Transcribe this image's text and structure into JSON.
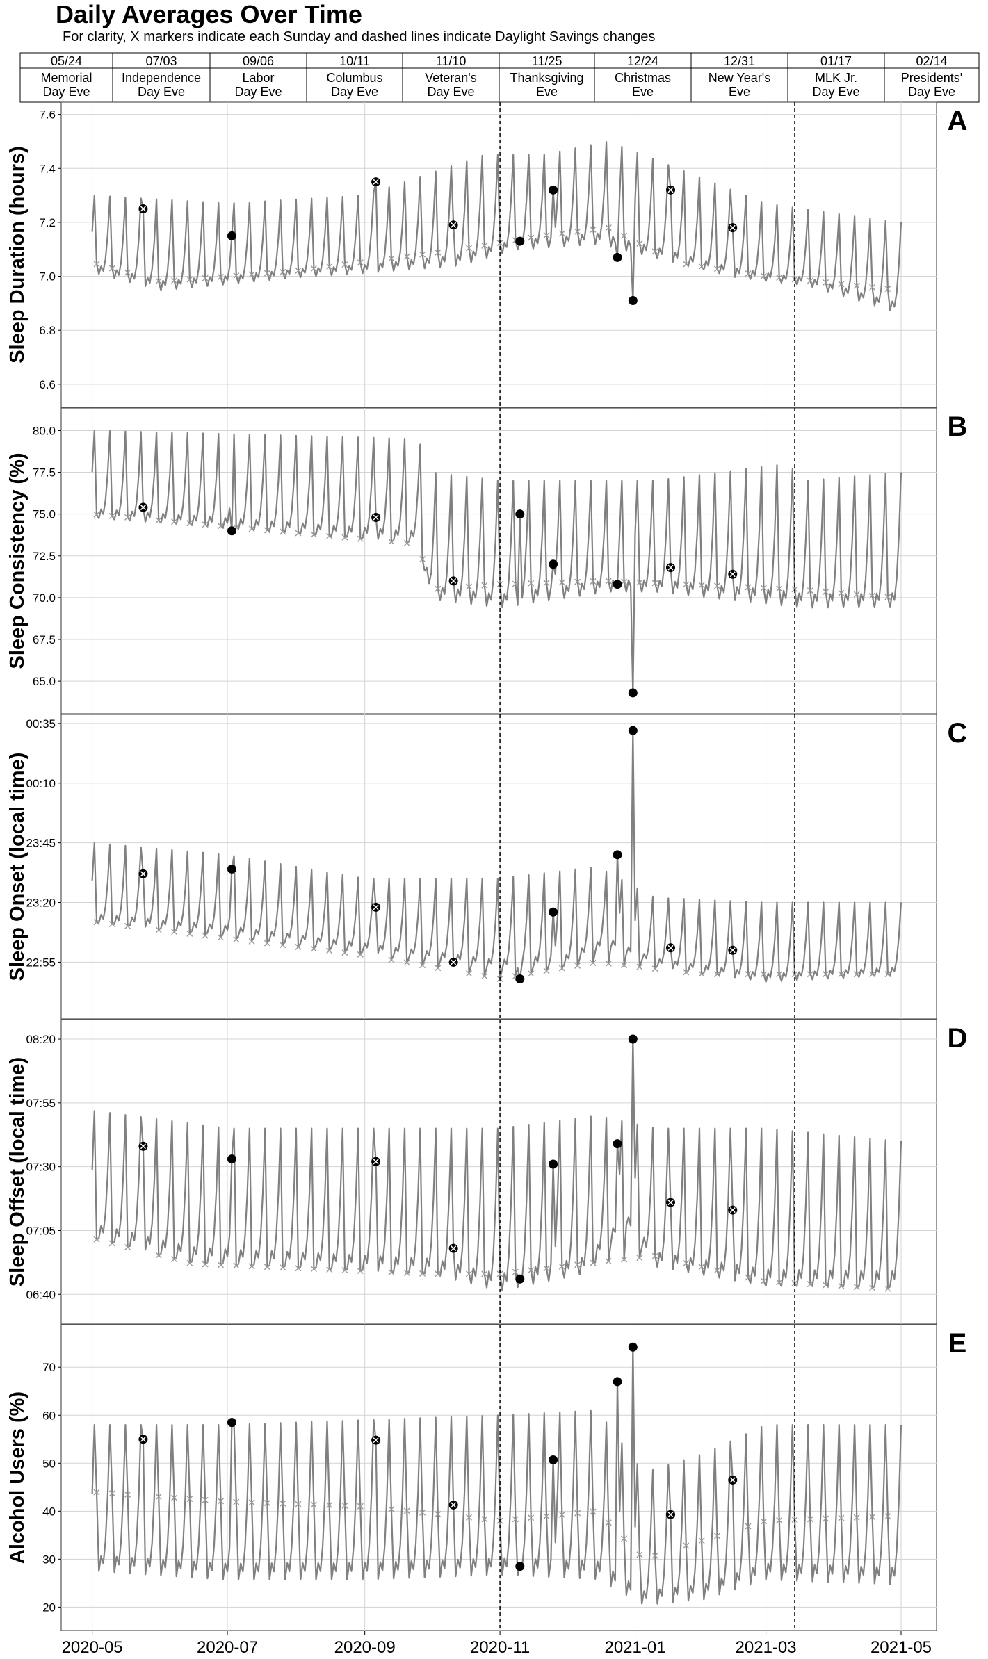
{
  "title": "Daily Averages Over Time",
  "subtitle": "For clarity, X markers indicate each Sunday and dashed lines indicate Daylight Savings changes",
  "holiday_table": [
    {
      "date": "05/24",
      "name_line1": "Memorial",
      "name_line2": "Day Eve"
    },
    {
      "date": "07/03",
      "name_line1": "Independence",
      "name_line2": "Day Eve"
    },
    {
      "date": "09/06",
      "name_line1": "Labor",
      "name_line2": "Day Eve"
    },
    {
      "date": "10/11",
      "name_line1": "Columbus",
      "name_line2": "Day Eve"
    },
    {
      "date": "11/10",
      "name_line1": "Veteran's",
      "name_line2": "Day Eve"
    },
    {
      "date": "11/25",
      "name_line1": "Thanksgiving",
      "name_line2": "Eve"
    },
    {
      "date": "12/24",
      "name_line1": "Christmas",
      "name_line2": "Eve"
    },
    {
      "date": "12/31",
      "name_line1": "New Year's",
      "name_line2": "Eve"
    },
    {
      "date": "01/17",
      "name_line1": "MLK Jr.",
      "name_line2": "Day Eve"
    },
    {
      "date": "02/14",
      "name_line1": "Presidents'",
      "name_line2": "Day Eve"
    }
  ],
  "x_tick_labels": [
    "2020-05",
    "2020-07",
    "2020-09",
    "2020-11",
    "2021-01",
    "2021-03",
    "2021-05"
  ],
  "x_ticks": [
    "2020-05-01",
    "2020-07-01",
    "2020-09-01",
    "2020-11-01",
    "2021-01-01",
    "2021-03-01",
    "2021-05-01"
  ],
  "x_range": [
    "2020-04-17",
    "2021-05-17"
  ],
  "dst_changes": [
    "2020-11-01",
    "2021-03-14"
  ],
  "styles": {
    "line_color": "#808080",
    "marker_color": "#000000",
    "grid_color": "#d3d3d3"
  },
  "chart_data": [
    {
      "type": "line",
      "panel_letter": "A",
      "ylabel": "Sleep Duration (hours)",
      "ylim": [
        6.53,
        7.63
      ],
      "y_ticks": [
        6.6,
        6.8,
        7.0,
        7.2,
        7.4,
        7.6
      ],
      "y_tick_labels": [
        "6.6",
        "6.8",
        "7.0",
        "7.2",
        "7.4",
        "7.6"
      ],
      "weekly_pattern": {
        "first_date": "2020-05-01",
        "last_date": "2021-05-01",
        "baseline_knots": [
          [
            "2020-05-01",
            7.0
          ],
          [
            "2020-06-01",
            6.93
          ],
          [
            "2020-08-01",
            6.98
          ],
          [
            "2020-10-15",
            7.02
          ],
          [
            "2020-11-08",
            7.08
          ],
          [
            "2020-12-15",
            7.1
          ],
          [
            "2021-01-10",
            7.05
          ],
          [
            "2021-02-15",
            6.98
          ],
          [
            "2021-03-20",
            6.95
          ],
          [
            "2021-04-29",
            6.85
          ]
        ],
        "peak_knots": [
          [
            "2020-05-01",
            7.3
          ],
          [
            "2020-07-01",
            7.27
          ],
          [
            "2020-09-01",
            7.3
          ],
          [
            "2020-10-25",
            7.45
          ],
          [
            "2020-11-20",
            7.45
          ],
          [
            "2020-12-20",
            7.5
          ],
          [
            "2021-01-20",
            7.4
          ],
          [
            "2021-03-01",
            7.27
          ],
          [
            "2021-04-29",
            7.2
          ]
        ],
        "sunday_knots": [
          [
            "2020-05-01",
            7.05
          ],
          [
            "2020-06-01",
            6.98
          ],
          [
            "2020-08-01",
            7.02
          ],
          [
            "2020-10-15",
            7.1
          ],
          [
            "2020-11-20",
            7.15
          ],
          [
            "2020-12-20",
            7.18
          ],
          [
            "2021-01-20",
            7.05
          ],
          [
            "2021-03-01",
            7.0
          ],
          [
            "2021-04-29",
            6.95
          ]
        ]
      },
      "holiday_markers": [
        {
          "date": "2020-05-24",
          "value": 7.25,
          "sunday": true
        },
        {
          "date": "2020-07-03",
          "value": 7.15,
          "sunday": false
        },
        {
          "date": "2020-09-06",
          "value": 7.35,
          "sunday": true
        },
        {
          "date": "2020-10-11",
          "value": 7.19,
          "sunday": true
        },
        {
          "date": "2020-11-10",
          "value": 7.13,
          "sunday": false
        },
        {
          "date": "2020-11-25",
          "value": 7.32,
          "sunday": false
        },
        {
          "date": "2020-12-24",
          "value": 7.07,
          "sunday": false
        },
        {
          "date": "2020-12-31",
          "value": 6.91,
          "sunday": false
        },
        {
          "date": "2021-01-17",
          "value": 7.32,
          "sunday": true
        },
        {
          "date": "2021-02-14",
          "value": 7.18,
          "sunday": true
        }
      ]
    },
    {
      "type": "line",
      "panel_letter": "B",
      "ylabel": "Sleep Consistency (%)",
      "ylim": [
        63.3,
        81.1
      ],
      "y_ticks": [
        65.0,
        67.5,
        70.0,
        72.5,
        75.0,
        77.5,
        80.0
      ],
      "y_tick_labels": [
        "65.0",
        "67.5",
        "70.0",
        "72.5",
        "75.0",
        "77.5",
        "80.0"
      ],
      "weekly_pattern": {
        "first_date": "2020-05-01",
        "last_date": "2021-05-01",
        "baseline_knots": [
          [
            "2020-05-01",
            74.5
          ],
          [
            "2020-09-25",
            73.0
          ],
          [
            "2020-10-01",
            69.5
          ],
          [
            "2020-11-01",
            69.0
          ],
          [
            "2020-12-20",
            70.0
          ],
          [
            "2021-01-10",
            70.0
          ],
          [
            "2021-03-14",
            69.0
          ],
          [
            "2021-04-29",
            69.0
          ]
        ],
        "peak_knots": [
          [
            "2020-05-01",
            80.0
          ],
          [
            "2020-09-25",
            79.5
          ],
          [
            "2020-10-01",
            77.5
          ],
          [
            "2020-11-01",
            77.0
          ],
          [
            "2020-12-20",
            77.0
          ],
          [
            "2021-01-10",
            77.0
          ],
          [
            "2021-03-10",
            78.0
          ],
          [
            "2021-03-20",
            77.0
          ],
          [
            "2021-04-29",
            77.5
          ]
        ],
        "sunday_knots": [
          [
            "2020-05-01",
            75.0
          ],
          [
            "2020-09-25",
            73.2
          ],
          [
            "2020-10-01",
            70.5
          ],
          [
            "2020-11-01",
            70.8
          ],
          [
            "2020-12-20",
            71.0
          ],
          [
            "2021-03-14",
            70.5
          ],
          [
            "2021-04-29",
            70.0
          ]
        ]
      },
      "holiday_markers": [
        {
          "date": "2020-05-24",
          "value": 75.4,
          "sunday": true
        },
        {
          "date": "2020-07-03",
          "value": 74.0,
          "sunday": false
        },
        {
          "date": "2020-09-06",
          "value": 74.8,
          "sunday": true
        },
        {
          "date": "2020-10-11",
          "value": 71.0,
          "sunday": true
        },
        {
          "date": "2020-11-10",
          "value": 75.0,
          "sunday": false
        },
        {
          "date": "2020-11-25",
          "value": 72.0,
          "sunday": false
        },
        {
          "date": "2020-12-24",
          "value": 70.8,
          "sunday": false
        },
        {
          "date": "2020-12-31",
          "value": 64.3,
          "sunday": false
        },
        {
          "date": "2021-01-17",
          "value": 71.8,
          "sunday": true
        },
        {
          "date": "2021-02-14",
          "value": 71.4,
          "sunday": true
        }
      ]
    },
    {
      "type": "line",
      "panel_letter": "C",
      "ylabel": "Sleep Onset (local time)",
      "ylim": [
        "22:33",
        "00:37"
      ],
      "y_ticks": [
        "22:55",
        "23:20",
        "23:45",
        "00:10",
        "00:35"
      ],
      "y_tick_labels": [
        "22:55",
        "23:20",
        "23:45",
        "00:10",
        "00:35"
      ],
      "weekly_pattern": {
        "first_date": "2020-05-01",
        "last_date": "2021-05-01",
        "baseline_knots": [
          [
            "2020-05-01",
            "23:10"
          ],
          [
            "2020-07-01",
            "23:05"
          ],
          [
            "2020-09-01",
            "22:58"
          ],
          [
            "2020-11-01",
            "22:50"
          ],
          [
            "2020-12-01",
            "22:52"
          ],
          [
            "2020-12-20",
            "23:00"
          ],
          [
            "2021-01-10",
            "22:52"
          ],
          [
            "2021-03-01",
            "22:45"
          ],
          [
            "2021-04-29",
            "22:48"
          ]
        ],
        "peak_knots": [
          [
            "2020-05-01",
            "23:45"
          ],
          [
            "2020-07-01",
            "23:40"
          ],
          [
            "2020-09-01",
            "23:30"
          ],
          [
            "2020-11-01",
            "23:30"
          ],
          [
            "2020-12-15",
            "23:35"
          ],
          [
            "2021-01-10",
            "23:22"
          ],
          [
            "2021-03-01",
            "23:20"
          ],
          [
            "2021-04-29",
            "23:20"
          ]
        ],
        "sunday_knots": [
          [
            "2020-05-01",
            "23:12"
          ],
          [
            "2020-07-01",
            "23:05"
          ],
          [
            "2020-09-01",
            "22:58"
          ],
          [
            "2020-11-01",
            "22:48"
          ],
          [
            "2020-12-15",
            "22:55"
          ],
          [
            "2021-02-01",
            "22:50"
          ],
          [
            "2021-04-29",
            "22:50"
          ]
        ]
      },
      "holiday_markers": [
        {
          "date": "2020-05-24",
          "value": "23:32",
          "sunday": true
        },
        {
          "date": "2020-07-03",
          "value": "23:34",
          "sunday": false
        },
        {
          "date": "2020-09-06",
          "value": "23:18",
          "sunday": true
        },
        {
          "date": "2020-10-11",
          "value": "22:55",
          "sunday": true
        },
        {
          "date": "2020-11-10",
          "value": "22:48",
          "sunday": false
        },
        {
          "date": "2020-11-25",
          "value": "23:16",
          "sunday": false
        },
        {
          "date": "2020-12-24",
          "value": "23:40",
          "sunday": false
        },
        {
          "date": "2020-12-31",
          "value": "00:32",
          "sunday": false
        },
        {
          "date": "2021-01-17",
          "value": "23:01",
          "sunday": true
        },
        {
          "date": "2021-02-14",
          "value": "23:00",
          "sunday": true
        }
      ]
    },
    {
      "type": "line",
      "panel_letter": "D",
      "ylabel": "Sleep Offset (local time)",
      "ylim": [
        "06:30",
        "08:26"
      ],
      "y_ticks": [
        "06:40",
        "07:05",
        "07:30",
        "07:55",
        "08:20"
      ],
      "y_tick_labels": [
        "06:40",
        "07:05",
        "07:30",
        "07:55",
        "08:20"
      ],
      "weekly_pattern": {
        "first_date": "2020-05-01",
        "last_date": "2021-05-01",
        "baseline_knots": [
          [
            "2020-05-01",
            "07:00"
          ],
          [
            "2020-06-15",
            "06:50"
          ],
          [
            "2020-08-01",
            "06:48"
          ],
          [
            "2020-10-01",
            "06:45"
          ],
          [
            "2020-11-01",
            "06:38"
          ],
          [
            "2020-12-10",
            "06:45"
          ],
          [
            "2020-12-28",
            "07:05"
          ],
          [
            "2021-01-10",
            "06:48"
          ],
          [
            "2021-03-01",
            "06:40"
          ],
          [
            "2021-04-29",
            "06:40"
          ]
        ],
        "peak_knots": [
          [
            "2020-05-01",
            "07:52"
          ],
          [
            "2020-07-01",
            "07:45"
          ],
          [
            "2020-09-01",
            "07:45"
          ],
          [
            "2020-11-01",
            "07:45"
          ],
          [
            "2020-12-15",
            "07:50"
          ],
          [
            "2021-01-10",
            "07:45"
          ],
          [
            "2021-03-01",
            "07:45"
          ],
          [
            "2021-04-29",
            "07:40"
          ]
        ],
        "sunday_knots": [
          [
            "2020-05-01",
            "07:02"
          ],
          [
            "2020-06-15",
            "06:52"
          ],
          [
            "2020-10-01",
            "06:48"
          ],
          [
            "2020-11-01",
            "06:48"
          ],
          [
            "2020-12-10",
            "06:52"
          ],
          [
            "2021-01-10",
            "06:55"
          ],
          [
            "2021-03-01",
            "06:45"
          ],
          [
            "2021-04-29",
            "06:42"
          ]
        ]
      },
      "holiday_markers": [
        {
          "date": "2020-05-24",
          "value": "07:38",
          "sunday": true
        },
        {
          "date": "2020-07-03",
          "value": "07:33",
          "sunday": false
        },
        {
          "date": "2020-09-06",
          "value": "07:32",
          "sunday": true
        },
        {
          "date": "2020-10-11",
          "value": "06:58",
          "sunday": true
        },
        {
          "date": "2020-11-10",
          "value": "06:46",
          "sunday": false
        },
        {
          "date": "2020-11-25",
          "value": "07:31",
          "sunday": false
        },
        {
          "date": "2020-12-24",
          "value": "07:39",
          "sunday": false
        },
        {
          "date": "2020-12-31",
          "value": "08:20",
          "sunday": false
        },
        {
          "date": "2021-01-17",
          "value": "07:16",
          "sunday": true
        },
        {
          "date": "2021-02-14",
          "value": "07:13",
          "sunday": true
        }
      ]
    },
    {
      "type": "line",
      "panel_letter": "E",
      "ylabel": "Alcohol Users (%)",
      "ylim": [
        16,
        78
      ],
      "y_ticks": [
        20,
        30,
        40,
        50,
        60,
        70
      ],
      "y_tick_labels": [
        "20",
        "30",
        "40",
        "50",
        "60",
        "70"
      ],
      "weekly_pattern": {
        "first_date": "2020-05-01",
        "last_date": "2021-05-01",
        "baseline_knots": [
          [
            "2020-05-01",
            26
          ],
          [
            "2020-07-01",
            24
          ],
          [
            "2020-09-01",
            24
          ],
          [
            "2020-11-01",
            25
          ],
          [
            "2020-12-15",
            24
          ],
          [
            "2021-01-05",
            19
          ],
          [
            "2021-02-01",
            20
          ],
          [
            "2021-03-01",
            24
          ],
          [
            "2021-04-29",
            23
          ]
        ],
        "peak_knots": [
          [
            "2020-05-01",
            58
          ],
          [
            "2020-07-01",
            58
          ],
          [
            "2020-09-01",
            59
          ],
          [
            "2020-11-01",
            60
          ],
          [
            "2020-12-15",
            61
          ],
          [
            "2021-01-05",
            48
          ],
          [
            "2021-02-01",
            52
          ],
          [
            "2021-03-01",
            58
          ],
          [
            "2021-04-29",
            58
          ]
        ],
        "sunday_knots": [
          [
            "2020-05-01",
            44
          ],
          [
            "2020-07-01",
            42
          ],
          [
            "2020-09-01",
            41
          ],
          [
            "2020-11-01",
            38
          ],
          [
            "2020-12-15",
            40
          ],
          [
            "2021-01-05",
            30
          ],
          [
            "2021-02-01",
            34
          ],
          [
            "2021-03-01",
            38
          ],
          [
            "2021-04-29",
            39
          ]
        ]
      },
      "holiday_markers": [
        {
          "date": "2020-05-24",
          "value": 55,
          "sunday": true
        },
        {
          "date": "2020-07-03",
          "value": 58.5,
          "sunday": false
        },
        {
          "date": "2020-09-06",
          "value": 54.8,
          "sunday": true
        },
        {
          "date": "2020-10-11",
          "value": 41.3,
          "sunday": true
        },
        {
          "date": "2020-11-10",
          "value": 28.5,
          "sunday": false
        },
        {
          "date": "2020-11-25",
          "value": 50.7,
          "sunday": false
        },
        {
          "date": "2020-12-24",
          "value": 67.0,
          "sunday": false
        },
        {
          "date": "2020-12-31",
          "value": 74.2,
          "sunday": false
        },
        {
          "date": "2021-01-17",
          "value": 39.3,
          "sunday": true
        },
        {
          "date": "2021-02-14",
          "value": 46.5,
          "sunday": true
        }
      ]
    }
  ]
}
